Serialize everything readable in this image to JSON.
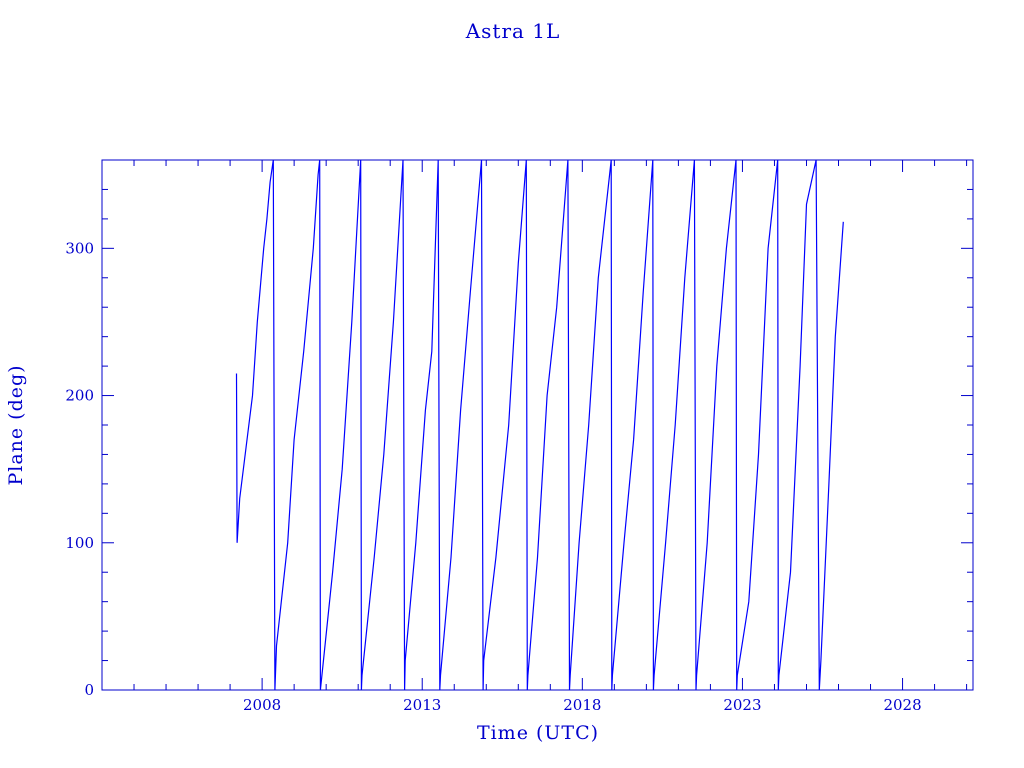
{
  "chart_data": {
    "type": "line",
    "title": "Astra 1L",
    "xlabel": "Time (UTC)",
    "ylabel": "Plane (deg)",
    "xlim": [
      2003.0,
      2030.2
    ],
    "ylim": [
      0,
      360
    ],
    "x_ticks": [
      2008,
      2013,
      2018,
      2023,
      2028
    ],
    "y_ticks": [
      0,
      100,
      200,
      300
    ],
    "grid": false,
    "series_color": "#0000ff",
    "series": [
      {
        "x": [
          2007.2,
          2007.22,
          2007.3,
          2007.5,
          2007.7,
          2007.85,
          2007.95,
          2008.05,
          2008.15,
          2008.25,
          2008.35,
          2008.4,
          2008.45,
          2008.6,
          2008.8,
          2009.0,
          2009.3,
          2009.6,
          2009.75,
          2009.8,
          2009.82,
          2010.2,
          2010.5,
          2010.8,
          2011.08,
          2011.1,
          2011.12,
          2011.5,
          2011.8,
          2012.1,
          2012.4,
          2012.45,
          2012.47,
          2012.8,
          2013.1,
          2013.3,
          2013.5,
          2013.55,
          2013.57,
          2013.9,
          2014.2,
          2014.5,
          2014.85,
          2014.9,
          2014.92,
          2015.3,
          2015.7,
          2016.0,
          2016.25,
          2016.28,
          2016.3,
          2016.6,
          2016.9,
          2017.2,
          2017.55,
          2017.6,
          2017.62,
          2017.9,
          2018.2,
          2018.5,
          2018.9,
          2018.92,
          2018.94,
          2019.3,
          2019.6,
          2019.9,
          2020.2,
          2020.22,
          2020.24,
          2020.6,
          2020.9,
          2021.2,
          2021.5,
          2021.55,
          2021.57,
          2021.9,
          2022.2,
          2022.5,
          2022.8,
          2022.82,
          2022.84,
          2023.2,
          2023.5,
          2023.8,
          2024.1,
          2024.12,
          2024.14,
          2024.5,
          2024.8,
          2025.0,
          2025.3,
          2025.4,
          2025.45,
          2025.7,
          2025.9,
          2026.15
        ],
        "y": [
          215,
          100,
          130,
          165,
          200,
          250,
          275,
          300,
          320,
          345,
          360,
          0,
          30,
          60,
          100,
          170,
          230,
          300,
          350,
          360,
          0,
          80,
          150,
          250,
          360,
          0,
          10,
          90,
          160,
          250,
          360,
          0,
          20,
          100,
          190,
          230,
          360,
          0,
          10,
          90,
          190,
          270,
          360,
          0,
          20,
          90,
          180,
          290,
          360,
          0,
          10,
          90,
          200,
          260,
          360,
          0,
          10,
          100,
          180,
          280,
          360,
          0,
          10,
          100,
          170,
          270,
          360,
          0,
          10,
          100,
          180,
          280,
          360,
          0,
          10,
          100,
          220,
          300,
          360,
          0,
          10,
          60,
          160,
          300,
          360,
          0,
          10,
          80,
          220,
          330,
          360,
          0,
          20,
          140,
          240,
          318
        ]
      }
    ]
  }
}
